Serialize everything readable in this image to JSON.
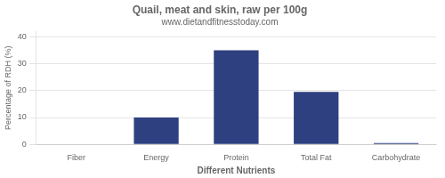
{
  "chart_data": {
    "type": "bar",
    "title": "Quail, meat and skin, raw per 100g",
    "subtitle": "www.dietandfitnesstoday.com",
    "xlabel": "Different Nutrients",
    "ylabel": "Percentage of RDH (%)",
    "categories": [
      "Fiber",
      "Energy",
      "Protein",
      "Total Fat",
      "Carbohydrate"
    ],
    "values": [
      0,
      10,
      35,
      19.5,
      0.5
    ],
    "color": "#2e4080",
    "ylim": [
      0,
      42
    ],
    "yticks": [
      0,
      10,
      20,
      30,
      40
    ],
    "grid": true
  }
}
